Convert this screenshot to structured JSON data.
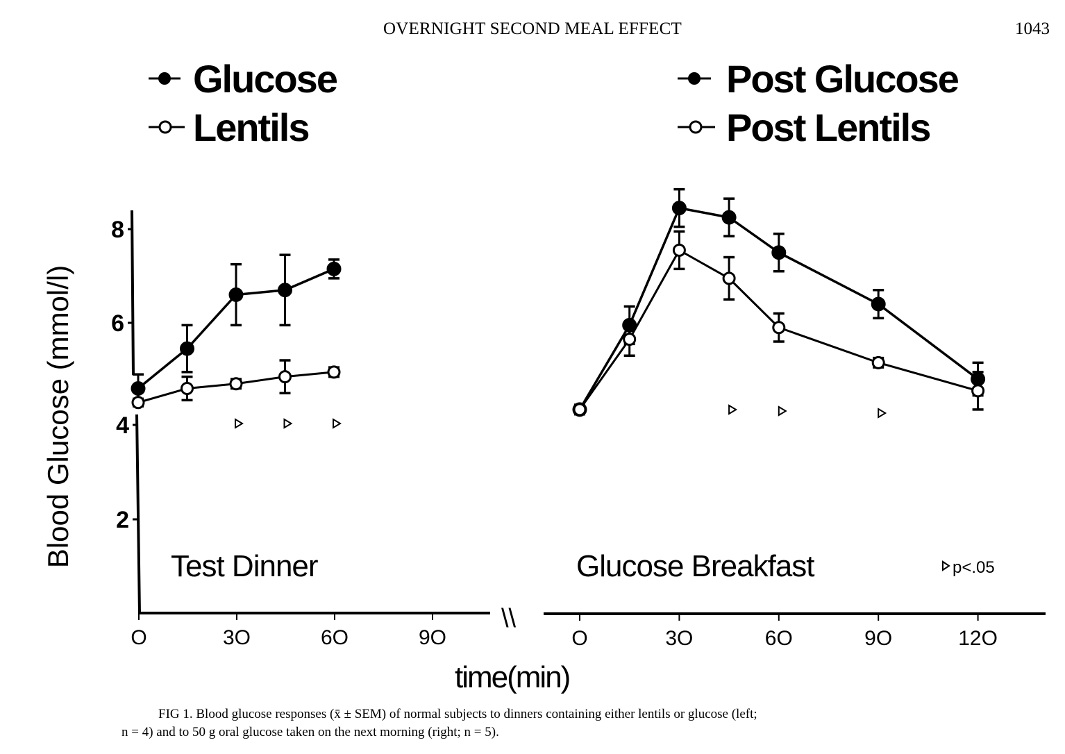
{
  "header": {
    "running_title": "OVERNIGHT SECOND MEAL EFFECT",
    "page_number": "1043"
  },
  "caption": {
    "line1": "FIG 1. Blood glucose responses (x̄ ± SEM) of normal subjects to dinners containing either lentils or glucose (left;",
    "line2": "n = 4) and to 50 g oral glucose taken on the next morning (right; n = 5)."
  },
  "chart_data": [
    {
      "type": "line",
      "panel": "left",
      "title": "Test Dinner",
      "xlabel": "time(min)",
      "ylabel": "Blood Glucose (mmol/l)",
      "ylim": [
        0,
        8.5
      ],
      "xlim": [
        0,
        110
      ],
      "y_axis_break": true,
      "grid": false,
      "legend_position": "top-left",
      "x_ticks": [
        0,
        30,
        60,
        90
      ],
      "x_tick_labels": [
        "O",
        "3O",
        "6O",
        "9O"
      ],
      "y_ticks": [
        2,
        4,
        6,
        8
      ],
      "y_tick_labels": [
        "2",
        "4",
        "6",
        "8"
      ],
      "series": [
        {
          "name": "Glucose",
          "marker": "filled-circle",
          "x": [
            0,
            15,
            30,
            45,
            60
          ],
          "values": [
            4.6,
            5.45,
            6.6,
            6.7,
            7.15
          ],
          "sem": [
            0.3,
            0.5,
            0.65,
            0.75,
            0.2
          ]
        },
        {
          "name": "Lentils",
          "marker": "open-circle",
          "x": [
            0,
            15,
            30,
            45,
            60
          ],
          "values": [
            4.3,
            4.6,
            4.7,
            4.85,
            4.95
          ],
          "sem": [
            0.08,
            0.25,
            0.1,
            0.35,
            0.1
          ]
        }
      ],
      "significance_markers_x": [
        30,
        45,
        60
      ],
      "significance_symbol": "▹"
    },
    {
      "type": "line",
      "panel": "right",
      "title": "Glucose Breakfast",
      "xlabel": "time(min)",
      "ylim": [
        0,
        8.5
      ],
      "xlim": [
        0,
        140
      ],
      "grid": false,
      "legend_position": "top-right",
      "x_ticks": [
        0,
        30,
        60,
        90,
        120
      ],
      "x_tick_labels": [
        "O",
        "3O",
        "6O",
        "9O",
        "12O"
      ],
      "series": [
        {
          "name": "Post Glucose",
          "marker": "filled-circle",
          "x": [
            0,
            15,
            30,
            45,
            60,
            90,
            120
          ],
          "values": [
            4.15,
            5.95,
            8.45,
            8.25,
            7.5,
            6.4,
            4.8
          ],
          "sem": [
            0.1,
            0.4,
            0.4,
            0.4,
            0.4,
            0.3,
            0.35
          ]
        },
        {
          "name": "Post Lentils",
          "marker": "open-circle",
          "x": [
            0,
            15,
            30,
            45,
            60,
            90,
            120
          ],
          "values": [
            4.15,
            5.65,
            7.55,
            6.95,
            5.9,
            5.15,
            4.55
          ],
          "sem": [
            0.1,
            0.35,
            0.4,
            0.45,
            0.3,
            0.1,
            0.4
          ]
        }
      ],
      "significance_markers_x": [
        45,
        60,
        90
      ],
      "significance_symbol": "▹",
      "annotation": "p<.05"
    }
  ],
  "axis_break_symbol": "\\\\"
}
